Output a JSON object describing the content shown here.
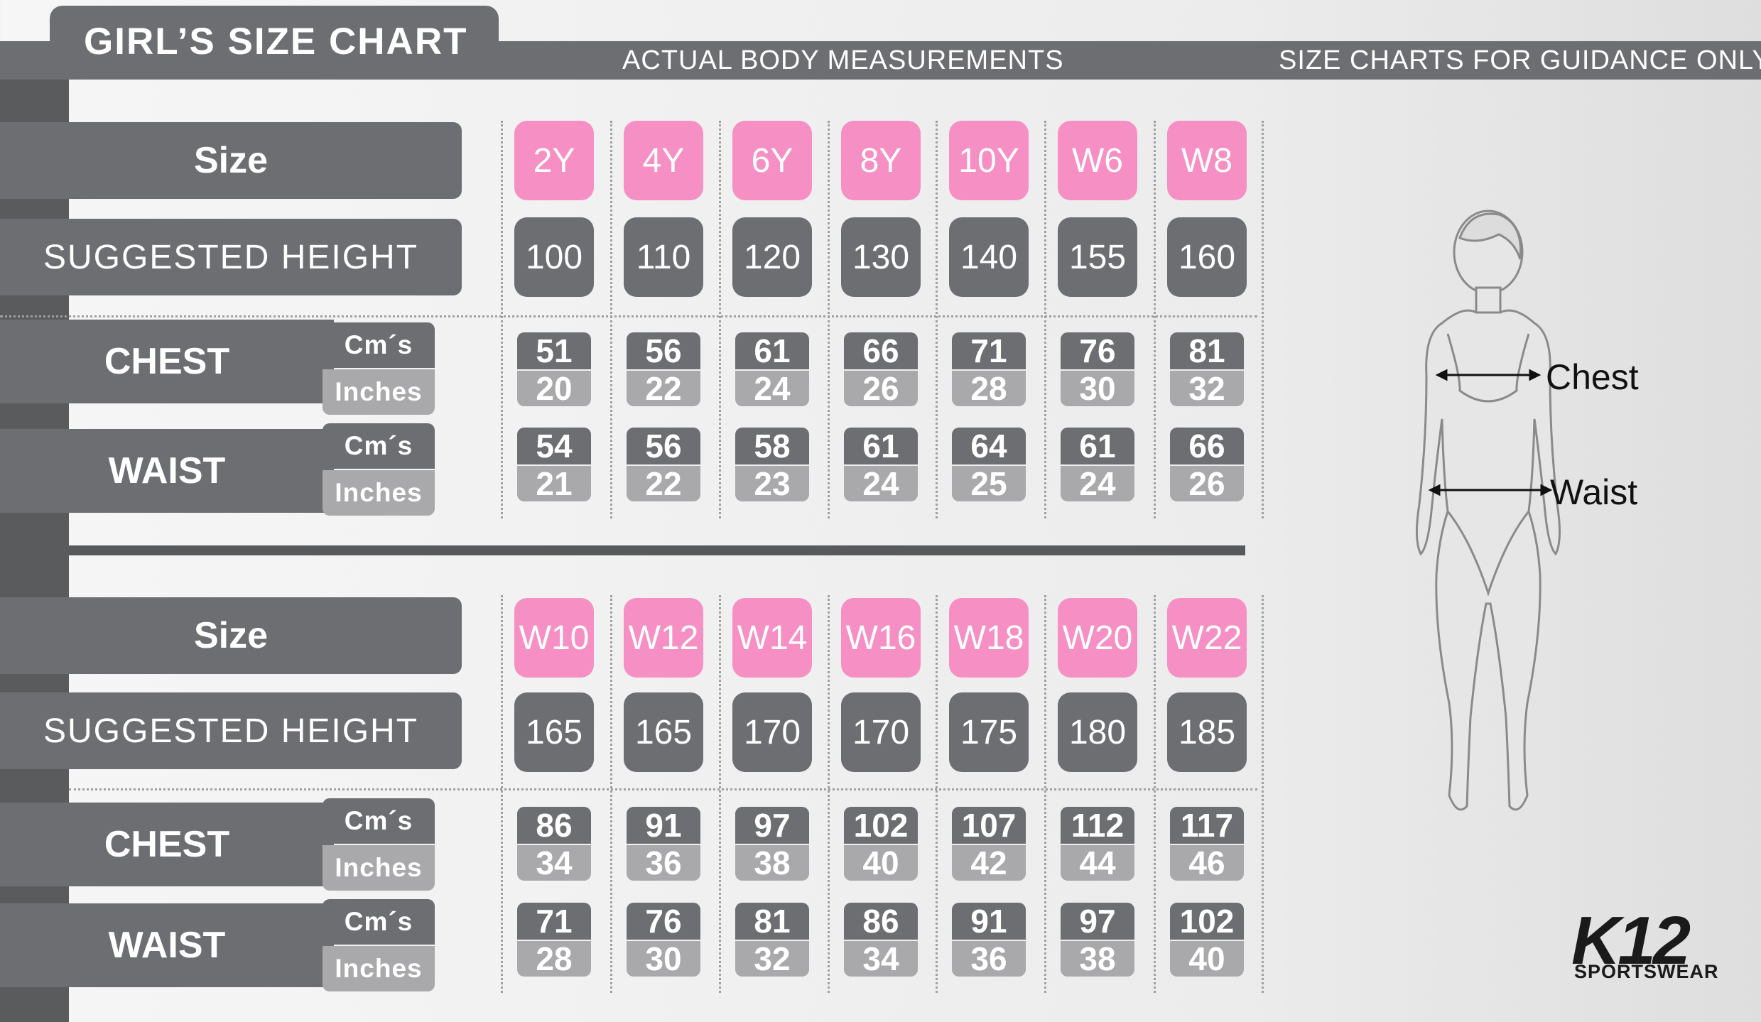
{
  "header": {
    "title": "GIRL’S SIZE CHART",
    "subtitle_left": "ACTUAL BODY MEASUREMENTS",
    "subtitle_right": "SIZE CHARTS FOR GUIDANCE ONLY"
  },
  "labels": {
    "size": "Size",
    "height": "SUGGESTED HEIGHT",
    "chest": "CHEST",
    "waist": "WAIST",
    "cm": "Cm´s",
    "inches": "Inches"
  },
  "table1": {
    "sizes": [
      "2Y",
      "4Y",
      "6Y",
      "8Y",
      "10Y",
      "W6",
      "W8"
    ],
    "heights": [
      "100",
      "110",
      "120",
      "130",
      "140",
      "155",
      "160"
    ],
    "chest_cm": [
      "51",
      "56",
      "61",
      "66",
      "71",
      "76",
      "81"
    ],
    "chest_in": [
      "20",
      "22",
      "24",
      "26",
      "28",
      "30",
      "32"
    ],
    "waist_cm": [
      "54",
      "56",
      "58",
      "61",
      "64",
      "61",
      "66"
    ],
    "waist_in": [
      "21",
      "22",
      "23",
      "24",
      "25",
      "24",
      "26"
    ]
  },
  "table2": {
    "sizes": [
      "W10",
      "W12",
      "W14",
      "W16",
      "W18",
      "W20",
      "W22"
    ],
    "heights": [
      "165",
      "165",
      "170",
      "170",
      "175",
      "180",
      "185"
    ],
    "chest_cm": [
      "86",
      "91",
      "97",
      "102",
      "107",
      "112",
      "117"
    ],
    "chest_in": [
      "34",
      "36",
      "38",
      "40",
      "42",
      "44",
      "46"
    ],
    "waist_cm": [
      "71",
      "76",
      "81",
      "86",
      "91",
      "97",
      "102"
    ],
    "waist_in": [
      "28",
      "30",
      "32",
      "34",
      "36",
      "38",
      "40"
    ]
  },
  "figure": {
    "chest_label": "Chest",
    "waist_label": "Waist"
  },
  "logo": {
    "mark": "K12",
    "sub": "SPORTSWEAR"
  },
  "colors": {
    "pink": "#f690c4",
    "dark_gray": "#6d6e71",
    "light_gray": "#a9a9ab"
  }
}
